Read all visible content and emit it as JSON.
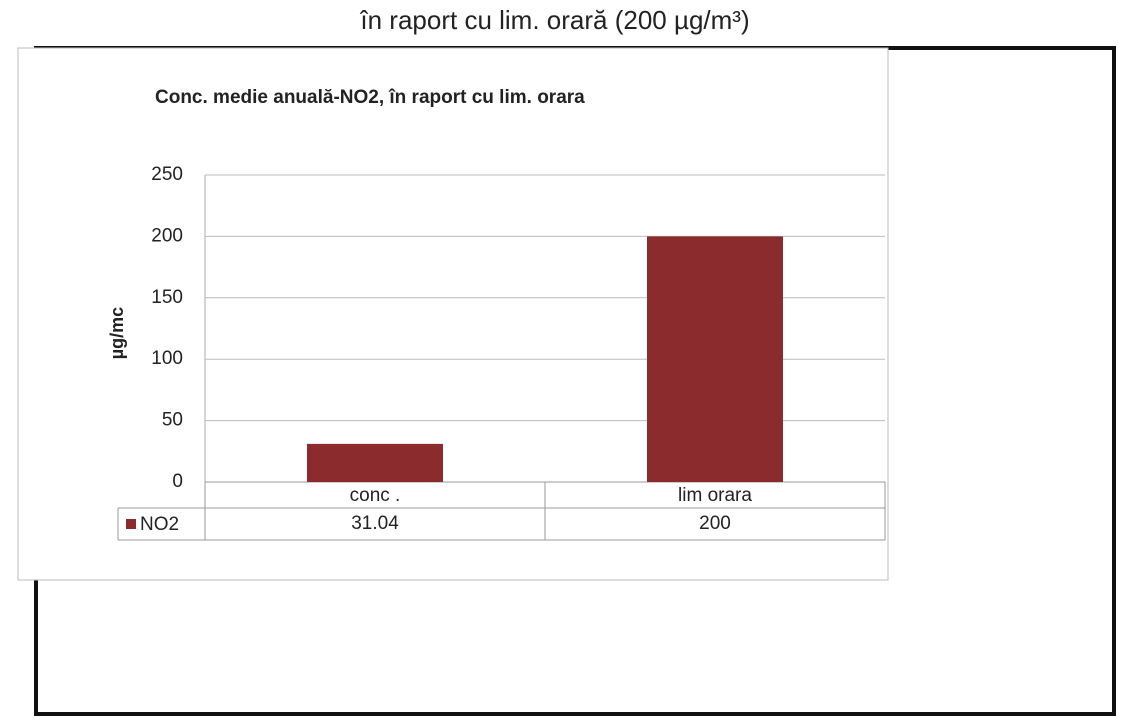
{
  "caption": "în raport cu lim. orară (200 µg/m³)",
  "chart_data": {
    "type": "bar",
    "title": "Conc. medie anuală-NO2, în raport cu lim. orara",
    "y_label": "µg/mc",
    "categories": [
      "conc .",
      "lim orara"
    ],
    "series": [
      {
        "name": "NO2",
        "color": "#8b2b2e",
        "values": [
          31.04,
          200
        ]
      }
    ],
    "ylim": [
      0,
      250
    ],
    "yticks": [
      0,
      50,
      100,
      150,
      200,
      250
    ],
    "grid": true,
    "data_table": true
  }
}
